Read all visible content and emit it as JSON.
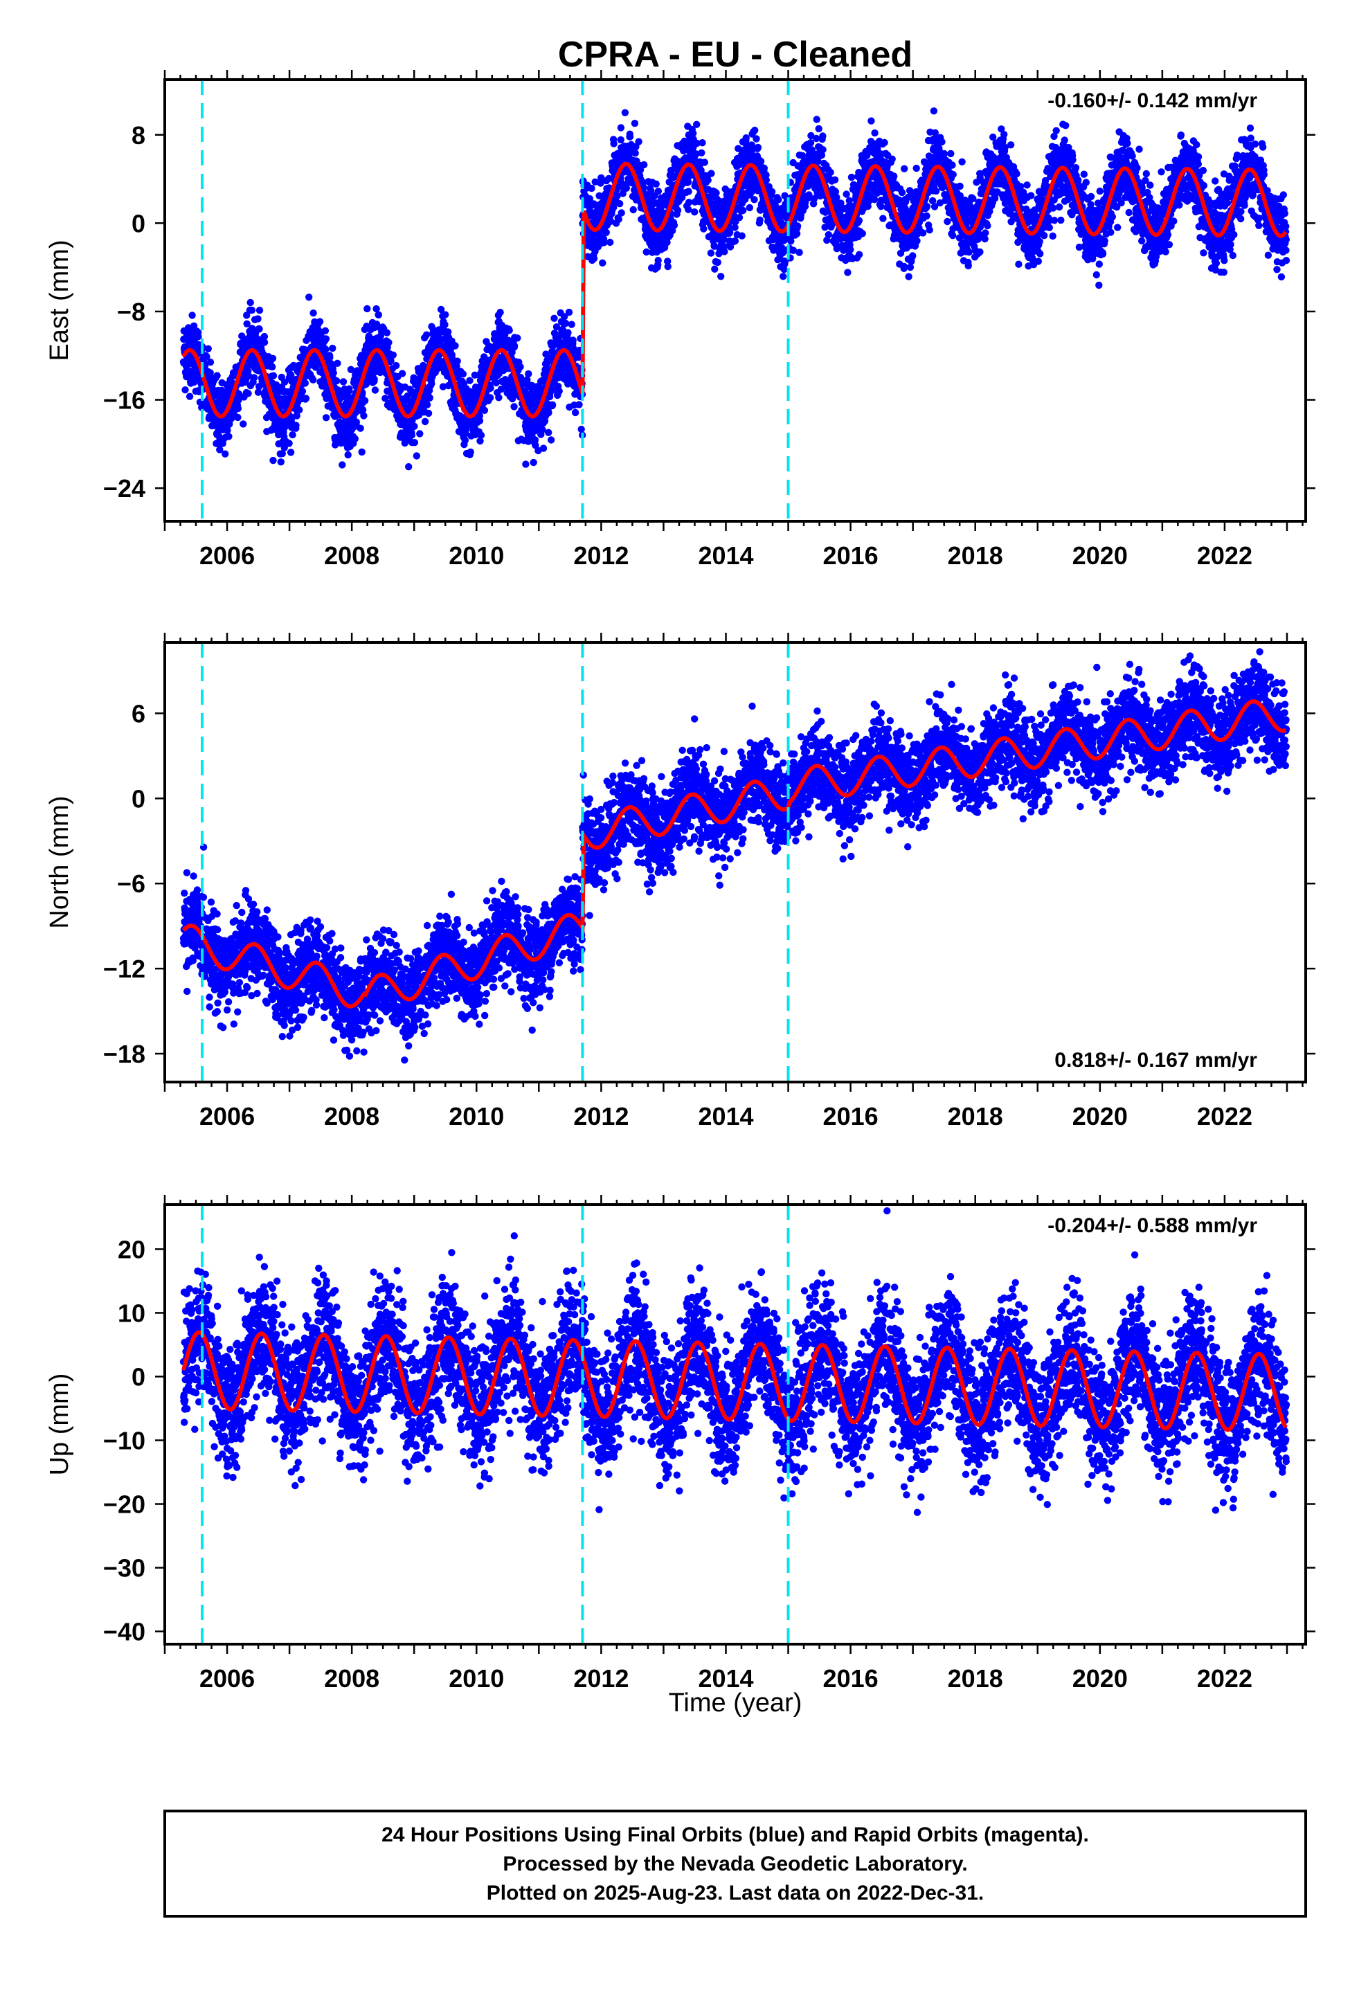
{
  "title": "CPRA  - EU - Cleaned",
  "xlabel": "Time (year)",
  "footer": {
    "line1": "24 Hour Positions Using Final Orbits (blue) and Rapid Orbits (magenta).",
    "line2": "Processed by the Nevada Geodetic Laboratory.",
    "line3": "Plotted on 2025-Aug-23. Last data on 2022-Dec-31."
  },
  "colors": {
    "data": "#0000ff",
    "model": "#ff0000",
    "event_lines": "#00e5ee",
    "frame": "#000000"
  },
  "chart_data": [
    {
      "type": "scatter",
      "component": "east",
      "ylabel": "East (mm)",
      "rate": "-0.160+/- 0.142 mm/yr",
      "xlim": [
        2005.0,
        2023.3
      ],
      "ylim": [
        -27,
        13
      ],
      "yticks": [
        -24,
        -16,
        -8,
        0,
        8
      ],
      "xticks": [
        2006,
        2008,
        2010,
        2012,
        2014,
        2016,
        2018,
        2020,
        2022
      ],
      "event_lines": [
        2005.6,
        2011.7,
        2015.0
      ],
      "data_range": [
        2005.3,
        2022.99
      ],
      "segments": [
        {
          "from": 2005.3,
          "to": 2011.7,
          "offset": -14.5,
          "trend": 0.0
        },
        {
          "from": 2011.7,
          "to": 2023.0,
          "offset": 2.4,
          "trend": -0.05
        }
      ],
      "seasonal": {
        "annual_amp": 3.0,
        "phase_peak": 0.4
      },
      "noise": 1.6
    },
    {
      "type": "scatter",
      "component": "north",
      "ylabel": "North (mm)",
      "rate": "0.818+/- 0.167 mm/yr",
      "xlim": [
        2005.0,
        2023.3
      ],
      "ylim": [
        -20,
        11
      ],
      "yticks": [
        -18,
        -12,
        -6,
        0,
        6
      ],
      "xticks": [
        2006,
        2008,
        2010,
        2012,
        2014,
        2016,
        2018,
        2020,
        2022
      ],
      "event_lines": [
        2005.6,
        2011.7,
        2015.0
      ],
      "data_range": [
        2005.3,
        2022.99
      ],
      "segments": [
        {
          "from": 2005.3,
          "to": 2008.2,
          "offset": -10.0,
          "trend": -1.3
        },
        {
          "from": 2008.2,
          "to": 2011.7,
          "offset": -14.0,
          "trend": 1.4
        },
        {
          "from": 2011.7,
          "to": 2015.0,
          "offset": -2.5,
          "trend": 0.9
        },
        {
          "from": 2015.0,
          "to": 2023.0,
          "offset": 0.8,
          "trend": 0.65
        }
      ],
      "seasonal": {
        "annual_amp": 1.2,
        "phase_peak": 0.45
      },
      "noise": 1.5
    },
    {
      "type": "scatter",
      "component": "up",
      "ylabel": "Up (mm)",
      "rate": "-0.204+/- 0.588 mm/yr",
      "xlim": [
        2005.0,
        2023.3
      ],
      "ylim": [
        -42,
        27
      ],
      "yticks": [
        -40,
        -30,
        -20,
        -10,
        0,
        10,
        20
      ],
      "xticks": [
        2006,
        2008,
        2010,
        2012,
        2014,
        2016,
        2018,
        2020,
        2022
      ],
      "event_lines": [
        2005.6,
        2011.7,
        2015.0
      ],
      "data_range": [
        2005.3,
        2022.99
      ],
      "segments": [
        {
          "from": 2005.3,
          "to": 2023.0,
          "offset": 1.0,
          "trend": -0.2
        }
      ],
      "seasonal": {
        "annual_amp": 6.0,
        "phase_peak": 0.55
      },
      "noise": 5.0
    }
  ]
}
